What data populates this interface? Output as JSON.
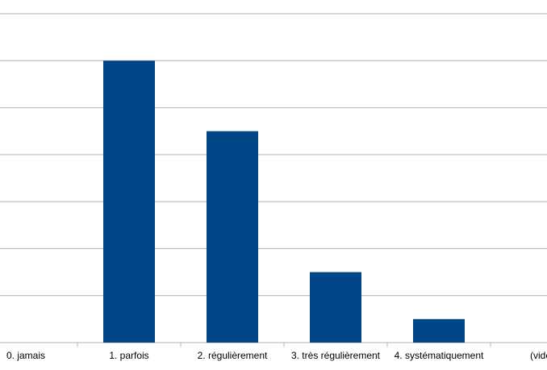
{
  "chart_data": {
    "type": "bar",
    "categories": [
      "0. jamais",
      "1. parfois",
      "2. régulièrement",
      "3. très régulièrement",
      "4. systématiquement",
      "(vide)"
    ],
    "values": [
      0,
      6,
      4.5,
      1.5,
      0.5,
      0
    ],
    "color": "#004586",
    "ylim": [
      0,
      7
    ],
    "yticks": [
      0,
      1,
      2,
      3,
      4,
      5,
      6,
      7
    ],
    "grid": true
  }
}
